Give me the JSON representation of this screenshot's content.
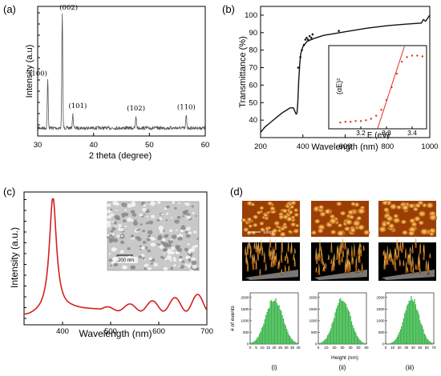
{
  "colors": {
    "xrd": "#555555",
    "trans": "#111111",
    "fit": "#e03020",
    "pl": "#d42020",
    "hist": "#3cb54a"
  },
  "chart_data": [
    {
      "type": "line",
      "panel_label": "(a)",
      "xlabel": "2 theta (degree)",
      "ylabel": "Intensity (a.u)",
      "xlim": [
        30,
        60
      ],
      "xticks": [
        "30",
        "40",
        "50",
        "60"
      ],
      "peaks": [
        {
          "label": "(100)",
          "x": 31.8,
          "height": 0.42
        },
        {
          "label": "(002)",
          "x": 34.4,
          "height": 1.0
        },
        {
          "label": "(101)",
          "x": 36.3,
          "height": 0.12
        },
        {
          "label": "(102)",
          "x": 47.6,
          "height": 0.1
        },
        {
          "label": "(110)",
          "x": 56.6,
          "height": 0.11
        }
      ]
    },
    {
      "type": "line",
      "panel_label": "(b)",
      "xlabel": "Wavelength (nm)",
      "ylabel": "Transmittance (%)",
      "xlim": [
        200,
        1000
      ],
      "ylim": [
        30,
        105
      ],
      "xticks": [
        "200",
        "400",
        "600",
        "800",
        "1000"
      ],
      "yticks": [
        "40",
        "50",
        "60",
        "70",
        "80",
        "90",
        "100"
      ],
      "series": [
        {
          "x": [
            200,
            220,
            240,
            260,
            280,
            300,
            320,
            340,
            355,
            362,
            368,
            372,
            376,
            380,
            385,
            390,
            400,
            420,
            440,
            460,
            500,
            550,
            600,
            700,
            800,
            900,
            960,
            970,
            980,
            1000
          ],
          "y": [
            33,
            36,
            38,
            40,
            42,
            44,
            45.5,
            47,
            47,
            45,
            43.5,
            44,
            50,
            62,
            72,
            78,
            82,
            85,
            86,
            87,
            88.5,
            89.5,
            90.5,
            92.5,
            94,
            95,
            95.5,
            97.5,
            96.5,
            100
          ]
        }
      ],
      "inset": {
        "xlabel": "E (eV)",
        "ylabel": "(αE)²",
        "xlim": [
          3.1,
          3.45
        ],
        "xticks": [
          "3.2",
          "3.3",
          "3.4"
        ],
        "points_x": [
          3.12,
          3.14,
          3.16,
          3.18,
          3.2,
          3.22,
          3.24,
          3.26,
          3.28,
          3.3,
          3.32,
          3.34,
          3.36,
          3.38,
          3.4,
          3.42,
          3.44
        ],
        "points_y": [
          0.03,
          0.04,
          0.04,
          0.05,
          0.05,
          0.06,
          0.08,
          0.12,
          0.2,
          0.33,
          0.5,
          0.68,
          0.84,
          0.9,
          0.92,
          0.92,
          0.91
        ],
        "fit_line": {
          "x": [
            3.265,
            3.37
          ],
          "y": [
            0.0,
            1.1
          ]
        }
      }
    },
    {
      "type": "line",
      "panel_label": "(c)",
      "xlabel": "Wavelength (nm)",
      "ylabel": "Intensity (a.u.)",
      "xlim": [
        320,
        700
      ],
      "xticks": [
        "400",
        "500",
        "600",
        "700"
      ],
      "peak_nm": 380,
      "inset_scale": "200 nm"
    },
    {
      "type": "bar",
      "panel_label": "(d)",
      "afm_scale": "10nm",
      "hist_ylabel": "# of events",
      "hist_xlabel": "Height (nm)",
      "hist_yticks": [
        "0",
        "500",
        "1000",
        "1500",
        "2000"
      ],
      "histograms": [
        {
          "label": "(i)",
          "xticks": [
            "0",
            "5",
            "10",
            "15",
            "20",
            "25",
            "30",
            "35",
            "40"
          ],
          "mean": 20,
          "sd": 7
        },
        {
          "label": "(ii)",
          "xticks": [
            "0",
            "10",
            "20",
            "30",
            "40",
            "50",
            "60"
          ],
          "mean": 30,
          "sd": 10
        },
        {
          "label": "(iii)",
          "xticks": [
            "0",
            "10",
            "20",
            "30",
            "40",
            "50",
            "60",
            "70"
          ],
          "mean": 38,
          "sd": 11
        }
      ]
    }
  ]
}
